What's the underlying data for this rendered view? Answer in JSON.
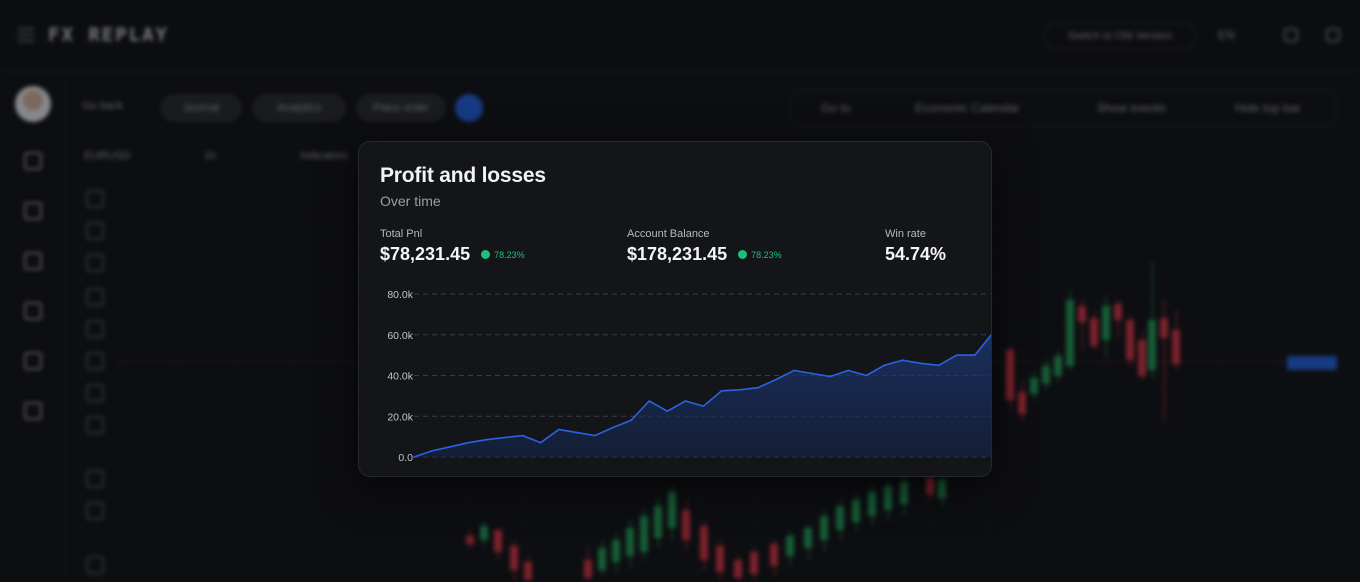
{
  "topbar": {
    "logo": "FX REPLAY",
    "switch_label": "Switch to Old Version",
    "language": "EN"
  },
  "toolbar": {
    "back_label": "Go back",
    "pills": [
      "Journal",
      "Analytics",
      "Place order"
    ],
    "right_items": [
      "Go to",
      "Economic Calendar",
      "Show events",
      "Hide top bar"
    ],
    "symbol": "EURUSD",
    "interval": "1h",
    "indicators": "Indicators"
  },
  "card": {
    "title": "Profit and losses",
    "subtitle": "Over time",
    "stats": [
      {
        "label": "Total Pnl",
        "value": "$78,231.45",
        "change": "78.23%"
      },
      {
        "label": "Account Balance",
        "value": "$178,231.45",
        "change": "78.23%"
      },
      {
        "label": "Win rate",
        "value": "54.74%",
        "change": ""
      }
    ]
  },
  "colors": {
    "accent": "#1f5fe0",
    "line": "#2a62e0",
    "positive": "#1fbf7a",
    "candle_up": "#1f9c55",
    "candle_down": "#d63241"
  },
  "chart_data": {
    "type": "area",
    "title": "",
    "xlabel": "",
    "ylabel": "",
    "ylim": [
      0,
      80000
    ],
    "yticks": [
      "0.0",
      "20.0k",
      "40.0k",
      "60.0k",
      "80.0k"
    ],
    "grid": true,
    "series": [
      {
        "values": [
          0,
          3000,
          5000,
          7000,
          8500,
          9500,
          10500,
          7000,
          13500,
          12000,
          10500,
          14500,
          18000,
          27500,
          22500,
          27500,
          25000,
          32500,
          33000,
          34000,
          38000,
          42500,
          41000,
          39500,
          42500,
          40000,
          45000,
          47500,
          46000,
          45000,
          50000,
          50000,
          61000
        ]
      }
    ]
  }
}
